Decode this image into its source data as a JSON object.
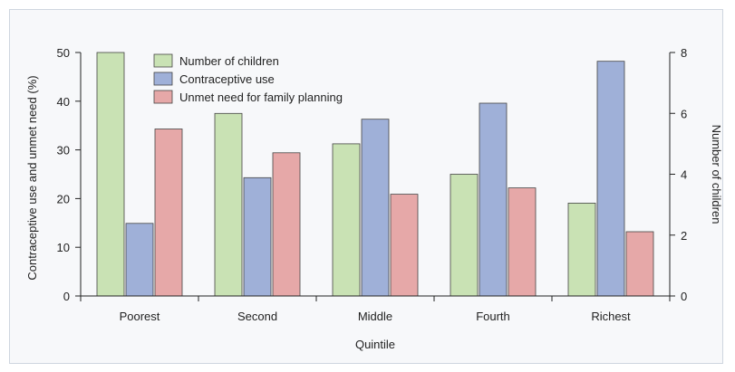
{
  "chart_data": {
    "type": "bar",
    "categories": [
      "Poorest",
      "Second",
      "Middle",
      "Fourth",
      "Richest"
    ],
    "xlabel": "Quintile",
    "ylabel_left": "Contraceptive use and unmet need (%)",
    "ylabel_right": "Number of children",
    "ylim_left": [
      0,
      50
    ],
    "ylim_right": [
      0,
      8
    ],
    "yticks_left": [
      0,
      10,
      20,
      30,
      40,
      50
    ],
    "yticks_right": [
      0,
      2,
      4,
      6,
      8
    ],
    "grid": false,
    "legend_position": "top-left",
    "series": [
      {
        "name": "Number of children",
        "axis": "right",
        "color": "#c9e2b4",
        "values": [
          8.0,
          6.0,
          5.0,
          4.0,
          3.05
        ]
      },
      {
        "name": "Contraceptive use",
        "axis": "left",
        "color": "#9fb0d8",
        "values": [
          14.9,
          24.3,
          36.3,
          39.6,
          48.2
        ]
      },
      {
        "name": "Unmet need for family planning",
        "axis": "left",
        "color": "#e6a8a8",
        "values": [
          34.3,
          29.4,
          20.9,
          22.2,
          13.2
        ]
      }
    ]
  }
}
